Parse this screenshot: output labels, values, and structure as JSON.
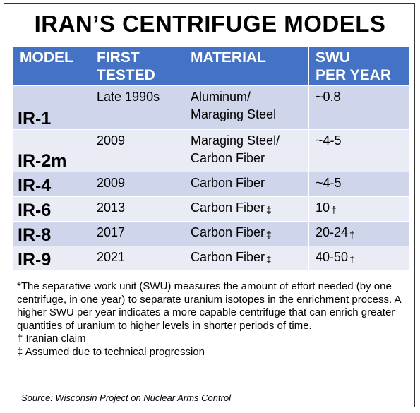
{
  "title": "IRAN’S CENTRIFUGE MODELS",
  "table": {
    "headers": {
      "model": [
        "MODEL"
      ],
      "first_tested": [
        "FIRST",
        "TESTED"
      ],
      "material": [
        "MATERIAL"
      ],
      "swu": [
        "SWU",
        "PER YEAR"
      ]
    },
    "rows": [
      {
        "model": "IR-1",
        "first_tested": "Late 1990s",
        "material": [
          "Aluminum/",
          "Maraging Steel"
        ],
        "material_mark": "",
        "swu": "~0.8",
        "swu_mark": ""
      },
      {
        "model": "IR-2m",
        "first_tested": "2009",
        "material": [
          "Maraging Steel/",
          "Carbon Fiber"
        ],
        "material_mark": "",
        "swu": "~4-5",
        "swu_mark": ""
      },
      {
        "model": "IR-4",
        "first_tested": "2009",
        "material": [
          "Carbon Fiber"
        ],
        "material_mark": "",
        "swu": "~4-5",
        "swu_mark": ""
      },
      {
        "model": "IR-6",
        "first_tested": "2013",
        "material": [
          "Carbon Fiber"
        ],
        "material_mark": "‡",
        "swu": "10",
        "swu_mark": "†"
      },
      {
        "model": "IR-8",
        "first_tested": "2017",
        "material": [
          "Carbon Fiber"
        ],
        "material_mark": "‡",
        "swu": "20-24",
        "swu_mark": "†"
      },
      {
        "model": "IR-9",
        "first_tested": "2021",
        "material": [
          "Carbon Fiber"
        ],
        "material_mark": "‡",
        "swu": "40-50",
        "swu_mark": "†"
      }
    ]
  },
  "notes": {
    "swu_definition": "*The separative work unit (SWU) measures the amount of effort needed (by one centrifuge, in one year) to separate uranium isotopes in the enrichment process. A higher SWU per year indicates a more capable centrifuge that can enrich greater quantities of uranium to higher levels in shorter periods of time.",
    "dagger": "† Iranian claim",
    "double_dagger": "‡ Assumed due to technical progression"
  },
  "source": "Source: Wisconsin Project on Nuclear Arms Control",
  "colors": {
    "header_bg": "#4472c4",
    "row_odd_bg": "#cfd5ea",
    "row_even_bg": "#e9ebf5",
    "header_text": "#ffffff"
  }
}
